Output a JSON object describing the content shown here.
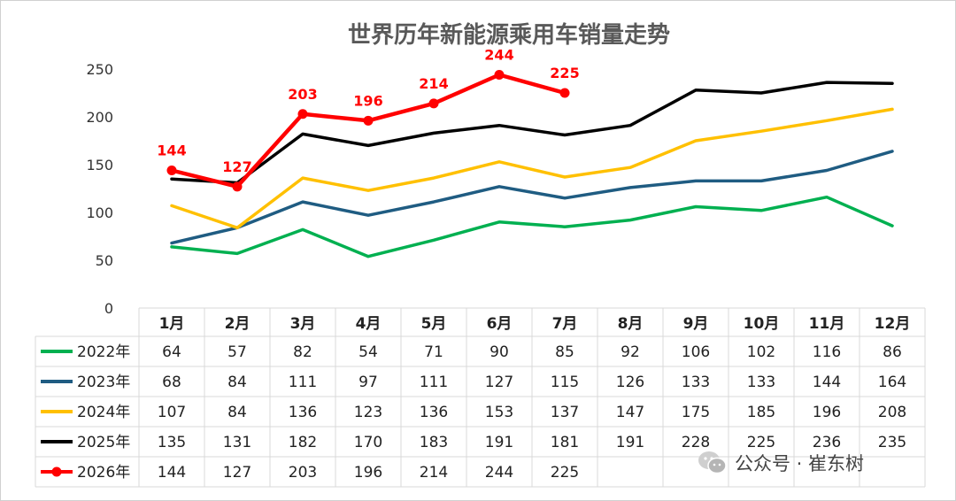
{
  "chart_data": {
    "type": "line",
    "title": "世界历年新能源乘用车销量走势",
    "categories": [
      "1月",
      "2月",
      "3月",
      "4月",
      "5月",
      "6月",
      "7月",
      "8月",
      "9月",
      "10月",
      "11月",
      "12月"
    ],
    "ylim": [
      0,
      250
    ],
    "yticks": [
      0,
      50,
      100,
      150,
      200,
      250
    ],
    "grid": false,
    "legend": "table-left",
    "series": [
      {
        "name": "2022年",
        "color": "#00b050",
        "values": [
          64,
          57,
          82,
          54,
          71,
          90,
          85,
          92,
          106,
          102,
          116,
          86
        ]
      },
      {
        "name": "2023年",
        "color": "#1f5c82",
        "values": [
          68,
          84,
          111,
          97,
          111,
          127,
          115,
          126,
          133,
          133,
          144,
          164
        ]
      },
      {
        "name": "2024年",
        "color": "#ffc000",
        "values": [
          107,
          84,
          136,
          123,
          136,
          153,
          137,
          147,
          175,
          185,
          196,
          208
        ]
      },
      {
        "name": "2025年",
        "color": "#000000",
        "values": [
          135,
          131,
          182,
          170,
          183,
          191,
          181,
          191,
          228,
          225,
          236,
          235
        ]
      },
      {
        "name": "2026年",
        "color": "#ff0000",
        "markers": true,
        "data_labels": true,
        "values": [
          144,
          127,
          203,
          196,
          214,
          244,
          225,
          null,
          null,
          null,
          null,
          null
        ]
      }
    ]
  },
  "watermark": {
    "icon": "wechat-icon",
    "text": "公众号 · 崔东树"
  }
}
